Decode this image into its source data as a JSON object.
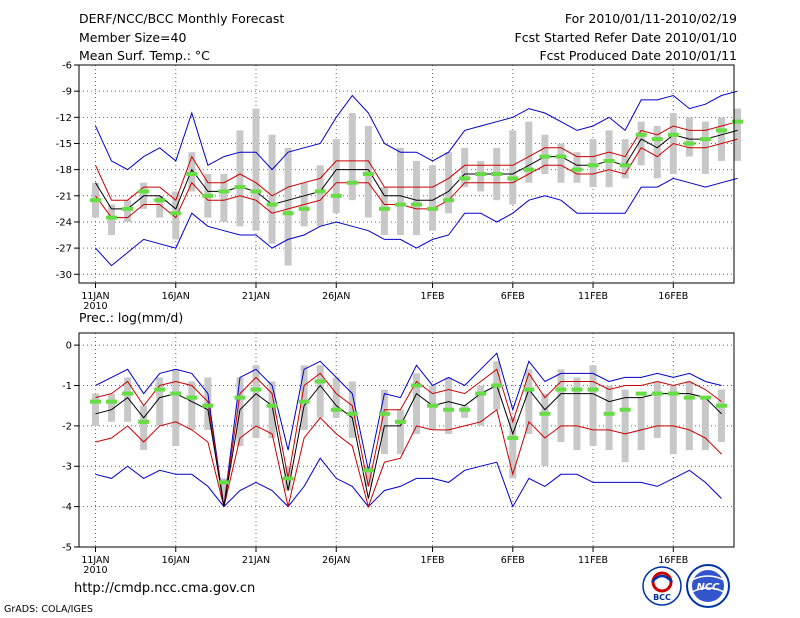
{
  "header": {
    "line1_left": "DERF/NCC/BCC Monthly Forecast",
    "line2_left": "Member Size=40",
    "line3_left": "Mean Surf. Temp.: °C",
    "line1_right": "For 2010/01/11-2010/02/19",
    "line2_right": "Fcst Started Refer Date 2010/01/10",
    "line3_right": "Fcst Produced Date 2010/01/11"
  },
  "footer": {
    "url": "http://cmdp.ncc.cma.gov.cn",
    "grads": "GrADS: COLA/IGES",
    "logo1_text": "BCC",
    "logo2_text": "NCC"
  },
  "colors": {
    "mean": "#000000",
    "envelope": "#0000cc",
    "quartile": "#cc0000",
    "box": "#c8c8c8",
    "marker": "#66dd44",
    "grid": "#666666"
  },
  "chart_data": [
    {
      "type": "line",
      "title": "Mean Surf. Temp.: °C",
      "x_tick_labels": [
        "11JAN",
        "16JAN",
        "21JAN",
        "26JAN",
        "1FEB",
        "6FEB",
        "11FEB",
        "16FEB"
      ],
      "x_tick_days": [
        0,
        5,
        10,
        15,
        21,
        26,
        31,
        36
      ],
      "x_year_label": "2010",
      "ylim": [
        -31,
        -6
      ],
      "y_ticks": [
        -30,
        -27,
        -24,
        -21,
        -18,
        -15,
        -12,
        -9,
        -6
      ],
      "series": [
        {
          "name": "ensemble mean",
          "values": [
            -19.5,
            -22.5,
            -22.5,
            -21,
            -21,
            -22.5,
            -18,
            -20.5,
            -20.5,
            -20,
            -20.5,
            -22,
            -21.5,
            -21,
            -20.5,
            -18,
            -18,
            -18,
            -21,
            -21,
            -21.5,
            -21.5,
            -20.5,
            -18.5,
            -18.5,
            -18.5,
            -18.5,
            -17.5,
            -16.5,
            -16.5,
            -17.5,
            -17.5,
            -17,
            -17.5,
            -14.5,
            -15.5,
            -14,
            -14.5,
            -14.5,
            -14,
            -13.5
          ]
        },
        {
          "name": "max",
          "values": [
            -13,
            -17,
            -18,
            -16.5,
            -15.5,
            -17,
            -11.5,
            -17.5,
            -16.5,
            -16,
            -16,
            -18,
            -16,
            -15.5,
            -15,
            -12,
            -9.5,
            -11.5,
            -15,
            -16,
            -16,
            -17,
            -16,
            -13.5,
            -13,
            -12.5,
            -12,
            -11,
            -11.5,
            -12.5,
            -13.5,
            -13,
            -12,
            -13.5,
            -10,
            -10,
            -9.5,
            -11,
            -10.5,
            -9.5,
            -9
          ]
        },
        {
          "name": "min",
          "values": [
            -27,
            -29,
            -27.5,
            -26,
            -26.5,
            -27,
            -23,
            -24.5,
            -25,
            -25.5,
            -25.5,
            -27,
            -26,
            -25.5,
            -24.5,
            -24,
            -24.5,
            -25,
            -26,
            -26,
            -27,
            -26,
            -25.5,
            -23,
            -23,
            -24,
            -23,
            -21.5,
            -21,
            -21.5,
            -23,
            -23,
            -23,
            -23,
            -20,
            -20,
            -19,
            -19.5,
            -20,
            -19.5,
            -19
          ]
        },
        {
          "name": "upper quartile",
          "values": [
            -17.5,
            -21.5,
            -21.5,
            -20,
            -20,
            -21.5,
            -16.5,
            -19.5,
            -19.5,
            -18.5,
            -19.5,
            -21,
            -20,
            -19.5,
            -19,
            -17,
            -17,
            -17,
            -20,
            -20,
            -20,
            -20,
            -19,
            -17.5,
            -17.5,
            -17.5,
            -17.5,
            -16.5,
            -15.5,
            -15.5,
            -16.5,
            -16.5,
            -16,
            -16.5,
            -13.5,
            -14,
            -13,
            -13.5,
            -13.5,
            -13,
            -12.5
          ]
        },
        {
          "name": "lower quartile",
          "values": [
            -21,
            -23.5,
            -23.5,
            -22,
            -22,
            -23.5,
            -19.5,
            -21.5,
            -21.5,
            -21,
            -21.5,
            -23,
            -22.5,
            -22,
            -21.5,
            -19.5,
            -19.5,
            -19.5,
            -22,
            -22,
            -22.5,
            -22.5,
            -21.5,
            -19.5,
            -19.5,
            -19.5,
            -19.5,
            -18.5,
            -17.5,
            -17.5,
            -18.5,
            -18.5,
            -18,
            -18.5,
            -15.5,
            -16.5,
            -15,
            -15.5,
            -15.5,
            -15,
            -14.5
          ]
        },
        {
          "name": "box top",
          "values": [
            -19.5,
            -22,
            -21.5,
            -19.5,
            -21,
            -20.5,
            -16,
            -18.5,
            -18.5,
            -13.5,
            -11,
            -14,
            -15.5,
            -19.5,
            -17.5,
            -14.5,
            -11.5,
            -13,
            -20,
            -15.5,
            -17,
            -17.5,
            -16,
            -15.5,
            -17,
            -15.5,
            -13.5,
            -12.5,
            -14,
            -15,
            -16,
            -14.5,
            -13.5,
            -14.5,
            -12.5,
            -13,
            -11.5,
            -12,
            -12.5,
            -12,
            -11
          ]
        },
        {
          "name": "box bottom",
          "values": [
            -23.5,
            -25.5,
            -24,
            -22.5,
            -23.5,
            -26,
            -20.5,
            -23.5,
            -24,
            -24.5,
            -25,
            -26.5,
            -29,
            -24.5,
            -24.5,
            -23,
            -21.5,
            -23.5,
            -25.5,
            -25.5,
            -25.5,
            -25,
            -23,
            -20,
            -20.5,
            -21.5,
            -22,
            -19.5,
            -18.5,
            -19.5,
            -19.5,
            -20,
            -20,
            -19,
            -17.5,
            -19,
            -18.5,
            -16.5,
            -18.5,
            -17,
            -17
          ]
        },
        {
          "name": "control forecast",
          "values": [
            -21.5,
            -23.5,
            -22.5,
            -20.5,
            -21.5,
            -23,
            -18.5,
            -21,
            -20.5,
            -20,
            -20.5,
            -22,
            -23,
            -22.5,
            -20.5,
            -21,
            -19.5,
            -18.5,
            -22.5,
            -22,
            -22,
            -22.5,
            -21.5,
            -19,
            -18.5,
            -18.5,
            -19,
            -18,
            -16.5,
            -16.5,
            -18,
            -17.5,
            -17,
            -17.5,
            -14,
            -14.5,
            -14,
            -15,
            -14.5,
            -13.5,
            -12.5
          ]
        }
      ]
    },
    {
      "type": "line",
      "title": "Prec.: log(mm/d)",
      "x_tick_labels": [
        "11JAN",
        "16JAN",
        "21JAN",
        "26JAN",
        "1FEB",
        "6FEB",
        "11FEB",
        "16FEB"
      ],
      "x_tick_days": [
        0,
        5,
        10,
        15,
        21,
        26,
        31,
        36
      ],
      "x_year_label": "2010",
      "ylim": [
        -5,
        0.3
      ],
      "y_ticks": [
        -5,
        -4,
        -3,
        -2,
        -1,
        0
      ],
      "series": [
        {
          "name": "ensemble mean",
          "values": [
            -1.7,
            -1.6,
            -1.3,
            -1.8,
            -1.3,
            -1.2,
            -1.4,
            -1.6,
            -4,
            -1.6,
            -1.2,
            -1.5,
            -3.6,
            -1.5,
            -1,
            -1.5,
            -1.8,
            -3.8,
            -2,
            -2,
            -1.2,
            -1.5,
            -1.4,
            -1.5,
            -1.2,
            -1,
            -2.2,
            -1.1,
            -1.6,
            -1.2,
            -1.2,
            -1.2,
            -1.4,
            -1.3,
            -1.3,
            -1.2,
            -1.2,
            -1.2,
            -1.3,
            -1.7
          ]
        },
        {
          "name": "max",
          "values": [
            -1,
            -0.8,
            -0.6,
            -1.2,
            -0.7,
            -0.6,
            -0.7,
            -1.2,
            -4,
            -0.8,
            -0.6,
            -1,
            -2.6,
            -0.6,
            -0.4,
            -0.8,
            -1.2,
            -3.1,
            -1.2,
            -1.3,
            -0.5,
            -1,
            -0.8,
            -1,
            -0.6,
            -0.2,
            -1.6,
            -0.4,
            -0.9,
            -0.7,
            -0.7,
            -0.7,
            -0.9,
            -0.8,
            -0.8,
            -0.7,
            -0.8,
            -0.7,
            -0.9,
            -1
          ]
        },
        {
          "name": "min",
          "values": [
            -3.2,
            -3.3,
            -3,
            -3.3,
            -3.1,
            -3.2,
            -3.2,
            -3.5,
            -4,
            -3.6,
            -3.4,
            -3.6,
            -4,
            -3.5,
            -2.8,
            -3.3,
            -3.5,
            -4,
            -3.6,
            -3.5,
            -3.3,
            -3.3,
            -3.4,
            -3.1,
            -3,
            -2.9,
            -4,
            -3.3,
            -3.5,
            -3.2,
            -3.2,
            -3.4,
            -3.4,
            -3.4,
            -3.4,
            -3.5,
            -3.3,
            -3.1,
            -3.4,
            -3.8
          ]
        },
        {
          "name": "upper quartile",
          "values": [
            -1.3,
            -1.2,
            -0.9,
            -1.5,
            -1,
            -0.9,
            -1,
            -1.4,
            -4,
            -1.2,
            -0.8,
            -1.2,
            -3.3,
            -1,
            -0.7,
            -1.2,
            -1.5,
            -3.5,
            -1.6,
            -1.6,
            -0.9,
            -1.2,
            -1.1,
            -1.2,
            -0.9,
            -0.6,
            -1.9,
            -0.7,
            -1.3,
            -0.9,
            -0.9,
            -0.9,
            -1.1,
            -1,
            -1,
            -0.9,
            -1,
            -0.9,
            -1.1,
            -1.4
          ]
        },
        {
          "name": "lower quartile",
          "values": [
            -2.4,
            -2.3,
            -2,
            -2.4,
            -2,
            -1.9,
            -2.1,
            -2.4,
            -4,
            -2.3,
            -2,
            -2.2,
            -4,
            -2.3,
            -1.8,
            -2.2,
            -2.5,
            -4,
            -2.9,
            -2.8,
            -2,
            -2.1,
            -2.1,
            -2,
            -1.9,
            -1.6,
            -3.2,
            -1.9,
            -2.3,
            -2,
            -2,
            -2.1,
            -2.1,
            -2.2,
            -2.1,
            -2,
            -2,
            -2.1,
            -2.3,
            -2.7
          ]
        },
        {
          "name": "box top",
          "values": [
            -1.2,
            -1.2,
            -0.8,
            -1.5,
            -0.8,
            -0.6,
            -0.9,
            -0.8,
            -3.3,
            -0.8,
            -0.5,
            -0.9,
            -3,
            -0.5,
            -0.5,
            -0.8,
            -0.9,
            -3,
            -1.1,
            -1.6,
            -0.7,
            -1,
            -0.8,
            -1.5,
            -1,
            -0.4,
            -1.8,
            -0.6,
            -1.2,
            -0.6,
            -0.8,
            -0.5,
            -1,
            -1.1,
            -1.3,
            -0.9,
            -1,
            -0.9,
            -1.3,
            -1.1
          ]
        },
        {
          "name": "box bottom",
          "values": [
            -2,
            -1.9,
            -1.9,
            -2.6,
            -2,
            -2.5,
            -2.1,
            -2.1,
            -3.8,
            -2.5,
            -2.3,
            -2.3,
            -3.6,
            -2.1,
            -1.8,
            -1.8,
            -2.3,
            -3.5,
            -2.7,
            -2.7,
            -2.2,
            -2.1,
            -2.2,
            -1.8,
            -2,
            -1.6,
            -3.3,
            -2.2,
            -3,
            -2.4,
            -2.6,
            -2.5,
            -2.6,
            -2.9,
            -2.6,
            -2.3,
            -2.7,
            -2.6,
            -2.6,
            -2.4
          ]
        },
        {
          "name": "control forecast",
          "values": [
            -1.4,
            -1.4,
            -1.2,
            -1.9,
            -1.1,
            -1.2,
            -1.3,
            -1.5,
            -3.4,
            -1.3,
            -1.1,
            -1.5,
            -3.3,
            -1.4,
            -0.9,
            -1.6,
            -1.7,
            -3.1,
            -1.7,
            -1.9,
            -1,
            -1.5,
            -1.6,
            -1.6,
            -1.2,
            -1,
            -2.3,
            -1.1,
            -1.7,
            -1.1,
            -1.1,
            -1.1,
            -1.7,
            -1.6,
            -1.2,
            -1.2,
            -1.2,
            -1.3,
            -1.3,
            -1.5
          ]
        }
      ]
    }
  ]
}
